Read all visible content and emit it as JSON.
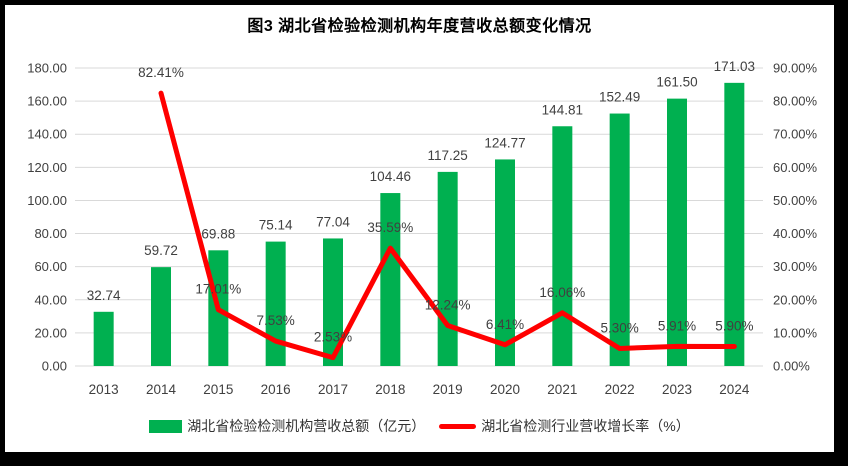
{
  "frame": {
    "border_color": "#000000",
    "surface_color": "#ffffff"
  },
  "chart_data": {
    "type": "bar+line combo",
    "title": "图3 湖北省检验检测机构年度营收总额变化情况",
    "categories": [
      "2013",
      "2014",
      "2015",
      "2016",
      "2017",
      "2018",
      "2019",
      "2020",
      "2021",
      "2022",
      "2023",
      "2024"
    ],
    "series": [
      {
        "name": "湖北省检验检测机构营收总额（亿元）",
        "type": "bar",
        "axis": "left",
        "color": "#00B050",
        "values": [
          32.74,
          59.72,
          69.88,
          75.14,
          77.04,
          104.46,
          117.25,
          124.77,
          144.81,
          152.49,
          161.5,
          171.03
        ],
        "labels": [
          "32.74",
          "59.72",
          "69.88",
          "75.14",
          "77.04",
          "104.46",
          "117.25",
          "124.77",
          "144.81",
          "152.49",
          "161.50",
          "171.03"
        ]
      },
      {
        "name": "湖北省检测行业营收增长率（%）",
        "type": "line",
        "axis": "right",
        "color": "#FF0000",
        "values": [
          null,
          82.41,
          17.01,
          7.53,
          2.53,
          35.59,
          12.24,
          6.41,
          16.06,
          5.3,
          5.91,
          5.9
        ],
        "labels": [
          null,
          "82.41%",
          "17.01%",
          "7.53%",
          "2.53%",
          "35.59%",
          "12.24%",
          "6.41%",
          "16.06%",
          "5.30%",
          "5.91%",
          "5.90%"
        ]
      }
    ],
    "left_axis": {
      "min": 0,
      "max": 180,
      "step": 20,
      "ticks": [
        "180.00",
        "160.00",
        "140.00",
        "120.00",
        "100.00",
        "80.00",
        "60.00",
        "40.00",
        "20.00",
        "0.00"
      ]
    },
    "right_axis": {
      "min": 0,
      "max": 90,
      "step": 10,
      "ticks": [
        "90.00%",
        "80.00%",
        "70.00%",
        "60.00%",
        "50.00%",
        "40.00%",
        "30.00%",
        "20.00%",
        "10.00%",
        "0.00%"
      ]
    },
    "grid": "horizontal only",
    "gridline_color": "#D9D9D9",
    "label_color": "#404040",
    "legend_position": "bottom"
  }
}
